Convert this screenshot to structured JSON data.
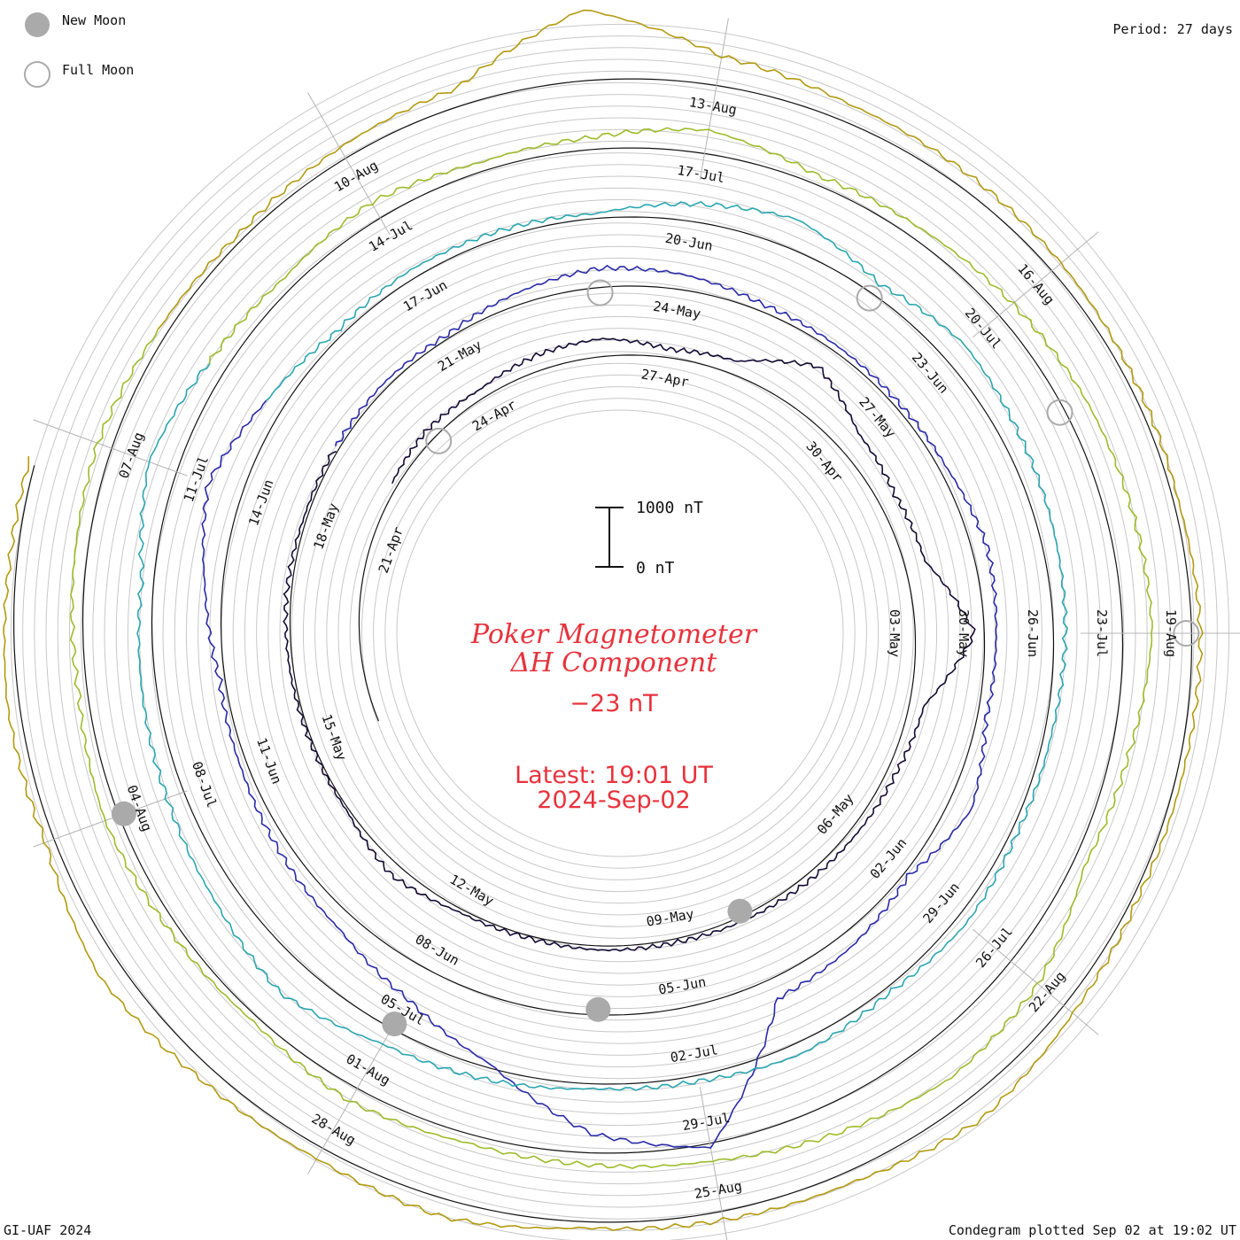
{
  "legend": {
    "new_moon_label": "New Moon",
    "full_moon_label": "Full Moon",
    "new_moon_color": "#aaaaaa",
    "full_moon_color": "#aaaaaa"
  },
  "period_label": "Period: 27 days",
  "footer_left": "GI-UAF 2024",
  "footer_right": "Condegram plotted Sep 02 at 19:02 UT",
  "center": {
    "title_line1": "Poker Magnetometer",
    "title_line2": "ΔH Component",
    "current_value": "−23 nT",
    "latest_line1": "Latest: 19:01 UT",
    "latest_line2": "2024-Sep-02",
    "scale_top": "1000 nT",
    "scale_bottom": "0 nT"
  },
  "colors": {
    "text_red": "#e8323c",
    "grid": "#c8c8c8"
  },
  "chart_data": {
    "type": "line",
    "start_date": "2024-04-18",
    "end_date": "2024-09-02",
    "period_days": 27,
    "series_colors": [
      "#140a33",
      "#2a2aa8",
      "#2aa6b0",
      "#9dbb2a",
      "#b39a10",
      "#c01810"
    ],
    "tick_dates": [
      "21-Apr",
      "24-Apr",
      "27-Apr",
      "30-Apr",
      "03-May",
      "06-May",
      "09-May",
      "12-May",
      "15-May",
      "18-May",
      "21-May",
      "24-May",
      "27-May",
      "30-May",
      "02-Jun",
      "05-Jun",
      "08-Jun",
      "11-Jun",
      "14-Jun",
      "17-Jun",
      "20-Jun",
      "23-Jun",
      "26-Jun",
      "29-Jun",
      "02-Jul",
      "05-Jul",
      "08-Jul",
      "11-Jul",
      "14-Jul",
      "17-Jul",
      "20-Jul",
      "23-Jul",
      "26-Jul",
      "29-Jul",
      "01-Aug",
      "04-Aug",
      "07-Aug",
      "10-Aug",
      "13-Aug",
      "16-Aug",
      "19-Aug",
      "22-Aug",
      "25-Aug",
      "28-Aug"
    ],
    "new_moon_dates": [
      "2024-05-08",
      "2024-06-06",
      "2024-07-05",
      "2024-08-04"
    ],
    "full_moon_dates": [
      "2024-04-23",
      "2024-05-23",
      "2024-06-22",
      "2024-07-21",
      "2024-08-19"
    ],
    "daily_delta_h_nT": [
      [
        4,
        100
      ],
      [
        5,
        180
      ],
      [
        6,
        150
      ],
      [
        7,
        260
      ],
      [
        8,
        300
      ],
      [
        9,
        140
      ],
      [
        10,
        230
      ],
      [
        11,
        800
      ],
      [
        12,
        400
      ],
      [
        13,
        300
      ],
      [
        14,
        350
      ],
      [
        15,
        1000
      ],
      [
        16,
        250
      ],
      [
        17,
        150
      ],
      [
        18,
        120
      ],
      [
        19,
        100
      ],
      [
        20,
        80
      ],
      [
        21,
        60
      ],
      [
        22,
        70
      ],
      [
        23,
        40
      ],
      [
        24,
        60
      ],
      [
        25,
        200
      ],
      [
        26,
        40
      ],
      [
        27,
        30
      ],
      [
        28,
        60
      ],
      [
        29,
        80
      ],
      [
        30,
        50
      ],
      [
        31,
        60
      ],
      [
        32,
        90
      ],
      [
        33,
        60
      ],
      [
        34,
        200
      ],
      [
        35,
        320
      ],
      [
        36,
        260
      ],
      [
        37,
        120
      ],
      [
        38,
        100
      ],
      [
        39,
        80
      ],
      [
        40,
        120
      ],
      [
        41,
        260
      ],
      [
        42,
        200
      ],
      [
        43,
        150
      ],
      [
        44,
        400
      ],
      [
        45,
        80
      ],
      [
        46,
        250
      ],
      [
        47,
        350
      ],
      [
        48,
        2400
      ],
      [
        49,
        2000
      ],
      [
        50,
        1100
      ],
      [
        51,
        600
      ],
      [
        52,
        300
      ],
      [
        53,
        200
      ],
      [
        54,
        120
      ],
      [
        55,
        90
      ],
      [
        56,
        300
      ],
      [
        57,
        600
      ],
      [
        58,
        300
      ],
      [
        59,
        100
      ],
      [
        60,
        150
      ],
      [
        61,
        120
      ],
      [
        62,
        80
      ],
      [
        63,
        300
      ],
      [
        64,
        500
      ],
      [
        65,
        200
      ],
      [
        66,
        400
      ],
      [
        67,
        300
      ],
      [
        68,
        250
      ],
      [
        69,
        200
      ],
      [
        70,
        120
      ],
      [
        71,
        100
      ],
      [
        72,
        180
      ],
      [
        73,
        90
      ],
      [
        74,
        200
      ],
      [
        75,
        100
      ],
      [
        76,
        80
      ],
      [
        77,
        200
      ],
      [
        78,
        300
      ],
      [
        79,
        600
      ],
      [
        80,
        400
      ],
      [
        81,
        300
      ],
      [
        82,
        250
      ],
      [
        83,
        200
      ],
      [
        84,
        500
      ],
      [
        85,
        300
      ],
      [
        86,
        200
      ],
      [
        87,
        300
      ],
      [
        88,
        150
      ],
      [
        89,
        200
      ],
      [
        90,
        400
      ],
      [
        91,
        150
      ],
      [
        92,
        200
      ],
      [
        93,
        300
      ],
      [
        94,
        400
      ],
      [
        95,
        450
      ],
      [
        96,
        500
      ],
      [
        97,
        300
      ],
      [
        98,
        200
      ],
      [
        99,
        600
      ],
      [
        100,
        700
      ],
      [
        101,
        500
      ],
      [
        102,
        300
      ],
      [
        103,
        200
      ],
      [
        104,
        150
      ],
      [
        105,
        250
      ],
      [
        106,
        100
      ],
      [
        107,
        150
      ],
      [
        108,
        250
      ],
      [
        109,
        150
      ],
      [
        110,
        200
      ],
      [
        111,
        250
      ],
      [
        112,
        150
      ],
      [
        113,
        100
      ],
      [
        114,
        200
      ],
      [
        115,
        300
      ],
      [
        116,
        1200
      ],
      [
        117,
        500
      ],
      [
        118,
        300
      ],
      [
        119,
        250
      ],
      [
        120,
        200
      ],
      [
        121,
        120
      ],
      [
        122,
        80
      ],
      [
        123,
        150
      ],
      [
        124,
        100
      ],
      [
        125,
        80
      ],
      [
        126,
        200
      ],
      [
        127,
        400
      ],
      [
        128,
        200
      ],
      [
        129,
        150
      ],
      [
        130,
        100
      ],
      [
        131,
        300
      ],
      [
        132,
        200
      ],
      [
        133,
        250
      ],
      [
        134,
        400
      ],
      [
        135,
        150
      ],
      [
        136,
        200
      ],
      [
        137,
        120
      ],
      [
        138,
        100
      ]
    ]
  }
}
